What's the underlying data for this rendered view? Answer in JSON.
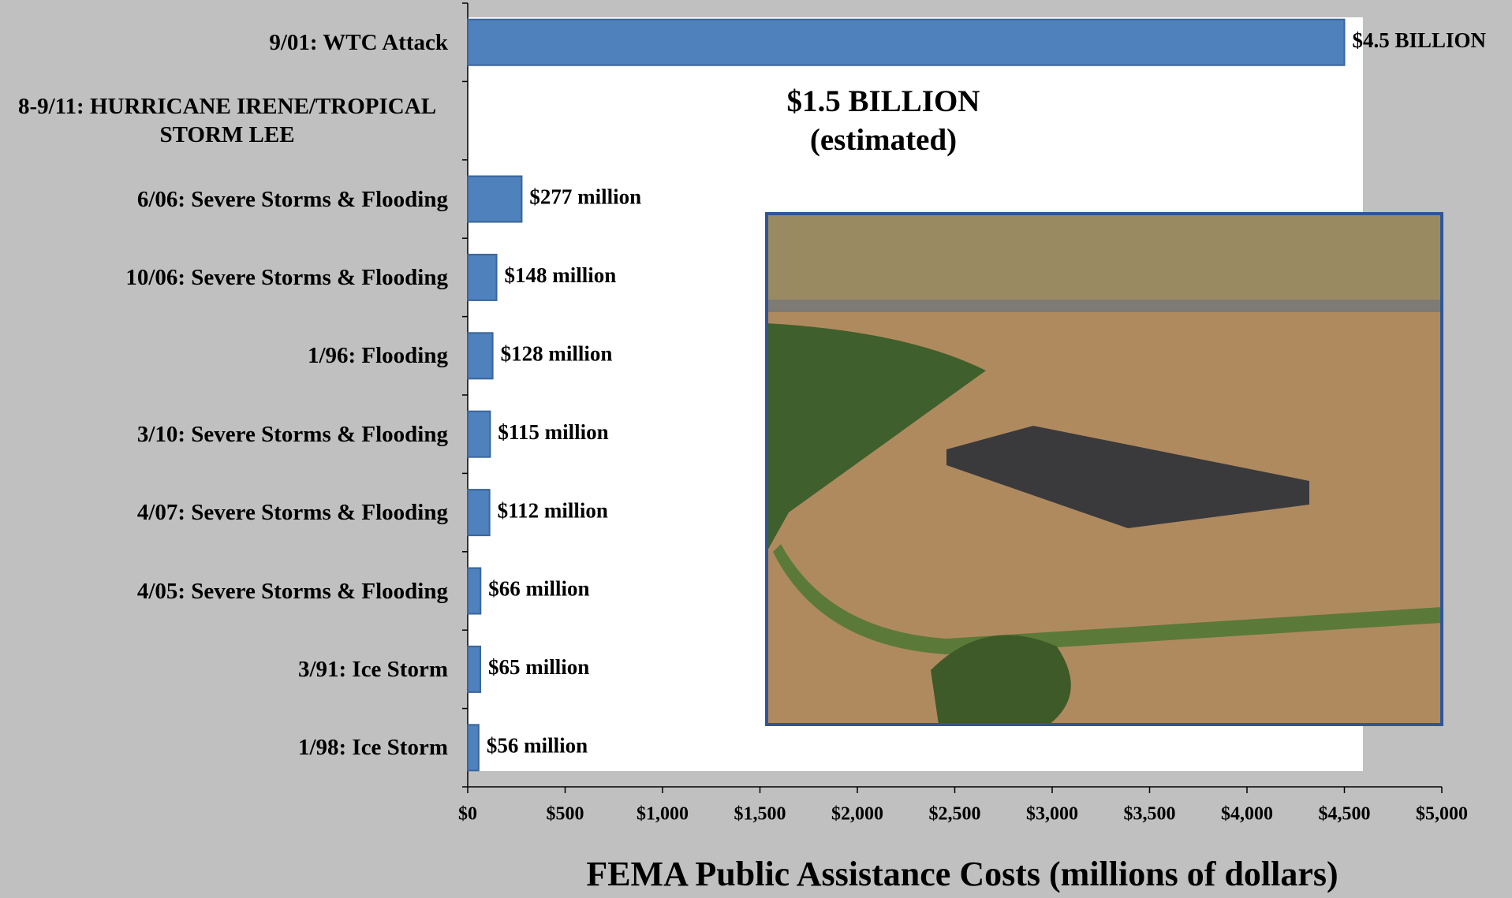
{
  "chart_data": {
    "type": "bar",
    "orientation": "horizontal",
    "x_label": "FEMA Public Assistance Costs (millions of dollars)",
    "annotation": [
      "$1.5 BILLION",
      "(estimated)"
    ],
    "categories": [
      "9/01: WTC Attack",
      "8-9/11: HURRICANE IRENE/TROPICAL STORM LEE",
      "6/06: Severe Storms & Flooding",
      "10/06: Severe Storms & Flooding",
      "1/96: Flooding",
      "3/10: Severe Storms & Flooding",
      "4/07: Severe Storms & Flooding",
      "4/05: Severe Storms & Flooding",
      "3/91: Ice Storm",
      "1/98: Ice Storm"
    ],
    "values": [
      4500,
      null,
      277,
      148,
      128,
      115,
      112,
      66,
      65,
      56
    ],
    "value_labels": [
      "$4.5 BILLION",
      null,
      "$277 million",
      "$148 million",
      "$128 million",
      "$115 million",
      "$112 million",
      "$66 million",
      "$65 million",
      "$56 million"
    ],
    "color": "#4f81bd",
    "xlim": [
      0,
      5000
    ],
    "xticks": [
      {
        "value": 0,
        "label": "$0"
      },
      {
        "value": 500,
        "label": "$500"
      },
      {
        "value": 1000,
        "label": "$1,000"
      },
      {
        "value": 1500,
        "label": "$1,500"
      },
      {
        "value": 2000,
        "label": "$2,000"
      },
      {
        "value": 2500,
        "label": "$2,500"
      },
      {
        "value": 3000,
        "label": "$3,000"
      },
      {
        "value": 3500,
        "label": "$3,500"
      },
      {
        "value": 4000,
        "label": "$4,000"
      },
      {
        "value": 4500,
        "label": "$4,500"
      },
      {
        "value": 5000,
        "label": "$5,000"
      }
    ],
    "grid": false
  }
}
